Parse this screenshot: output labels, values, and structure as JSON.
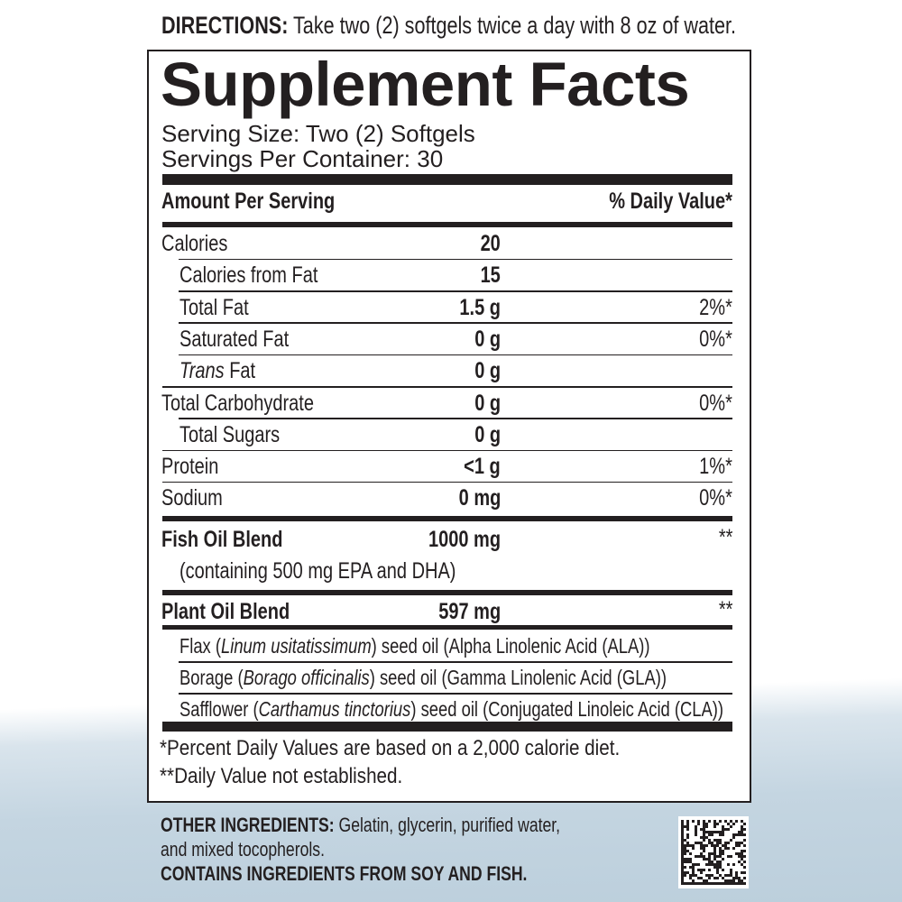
{
  "directions": {
    "label": "DIRECTIONS:",
    "text": " Take two (2) softgels twice a day with 8 oz of water."
  },
  "title": "Supplement Facts",
  "serving_size": "Serving Size: Two (2) Softgels",
  "servings_per_container": "Servings Per Container: 30",
  "header": {
    "amount": "Amount Per Serving",
    "dv": "% Daily Value*"
  },
  "nutrients": [
    {
      "name": "Calories",
      "amount": "20",
      "dv": ""
    },
    {
      "name": "Calories from Fat",
      "amount": "15",
      "dv": "",
      "indent": true
    },
    {
      "name": "Total Fat",
      "amount": "1.5 g",
      "dv": "2%*",
      "indent": true
    },
    {
      "name": "Saturated Fat",
      "amount": "0 g",
      "dv": "0%*",
      "indent": true
    },
    {
      "name_italic": "Trans",
      "name": " Fat",
      "amount": "0 g",
      "dv": "",
      "indent": true
    },
    {
      "name": "Total Carbohydrate",
      "amount": "0 g",
      "dv": "0%*"
    },
    {
      "name": "Total Sugars",
      "amount": "0 g",
      "dv": "",
      "indent": true
    },
    {
      "name": "Protein",
      "amount": "<1 g",
      "dv": "1%*"
    },
    {
      "name": "Sodium",
      "amount": "0 mg",
      "dv": "0%*"
    }
  ],
  "fish_oil": {
    "name": "Fish Oil Blend",
    "amount": "1000 mg",
    "dv": "**",
    "note": "(containing 500 mg EPA and DHA)"
  },
  "plant_oil": {
    "name": "Plant Oil Blend",
    "amount": "597 mg",
    "dv": "**",
    "components": [
      {
        "pre": "Flax (",
        "latin": "Linum usitatissimum",
        "post": ") seed oil (Alpha Linolenic Acid (ALA))"
      },
      {
        "pre": "Borage (",
        "latin": "Borago officinalis",
        "post": ") seed oil (Gamma Linolenic Acid (GLA))"
      },
      {
        "pre": "Safflower (",
        "latin": "Carthamus tinctorius",
        "post": ") seed oil (Conjugated Linoleic Acid (CLA))"
      }
    ]
  },
  "footnotes": [
    "*Percent Daily Values are based on a 2,000 calorie diet.",
    "**Daily Value not established."
  ],
  "other_ingredients": {
    "label": "OTHER INGREDIENTS:",
    "text": " Gelatin, glycerin, purified water,",
    "text2": "and mixed tocopherols."
  },
  "allergen": "CONTAINS INGREDIENTS FROM SOY AND FISH.",
  "colors": {
    "ink": "#231f20",
    "background_wash": "#c4d5e1"
  }
}
